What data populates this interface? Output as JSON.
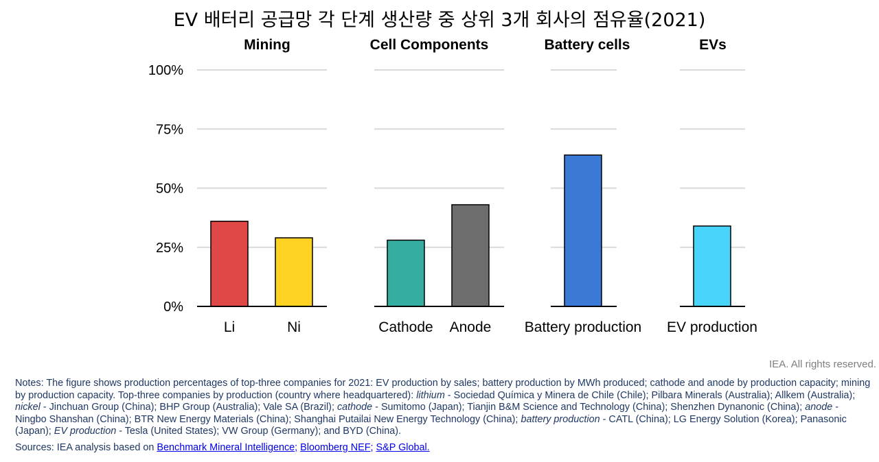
{
  "chart_data": {
    "type": "bar",
    "title": "EV 배터리 공급망 각 단계 생산량 중 상위 3개 회사의 점유율(2021)",
    "ylim": [
      0,
      100
    ],
    "yticks": [
      "0%",
      "25%",
      "50%",
      "75%",
      "100%"
    ],
    "ytick_values": [
      0,
      25,
      50,
      75,
      100
    ],
    "grid": true,
    "panels": [
      {
        "title": "Mining",
        "categories": [
          "Li",
          "Ni"
        ],
        "values": [
          36,
          29
        ],
        "colors": [
          "#e04848",
          "#fdd223"
        ]
      },
      {
        "title": "Cell Components",
        "categories": [
          "Cathode",
          "Anode"
        ],
        "values": [
          28,
          43
        ],
        "colors": [
          "#36ada1",
          "#6e6e6e"
        ]
      },
      {
        "title": "Battery cells",
        "categories": [
          "Battery production"
        ],
        "values": [
          64
        ],
        "colors": [
          "#3a7ad6"
        ]
      },
      {
        "title": "EVs",
        "categories": [
          "EV production"
        ],
        "values": [
          34
        ],
        "colors": [
          "#48d4fb"
        ]
      }
    ]
  },
  "rights": "IEA. All rights reserved.",
  "notes": {
    "p1": "Notes: The figure shows production percentages of top-three companies for 2021: EV production by sales; battery production by MWh produced; cathode and anode by production capacity; mining by production capacity. Top-three companies by production (country where headquartered): ",
    "lithium_label": "lithium",
    "lithium_text": " - Sociedad Química y Minera de Chile (Chile); Pilbara Minerals (Australia); Allkem (Australia); ",
    "nickel_label": "nickel",
    "nickel_text": " - Jinchuan Group (China); BHP Group (Australia); Vale SA (Brazil); ",
    "cathode_label": "cathode",
    "cathode_text": " - Sumitomo (Japan); Tianjin B&M Science and Technology (China); Shenzhen Dynanonic (China); ",
    "anode_label": "anode",
    "anode_text": " - Ningbo Shanshan (China); BTR New Energy Materials (China); Shanghai Putailai New Energy Technology (China); ",
    "battery_label": "battery production",
    "battery_text": " - CATL (China); LG Energy Solution (Korea); Panasonic (Japan); ",
    "ev_label": "EV production",
    "ev_text": " - Tesla (United States); VW Group (Germany); and BYD (China)."
  },
  "sources": {
    "prefix": "Sources: IEA analysis based on ",
    "links": [
      "Benchmark Mineral Intelligence;",
      "Bloomberg NEF;",
      "S&P Global."
    ]
  }
}
